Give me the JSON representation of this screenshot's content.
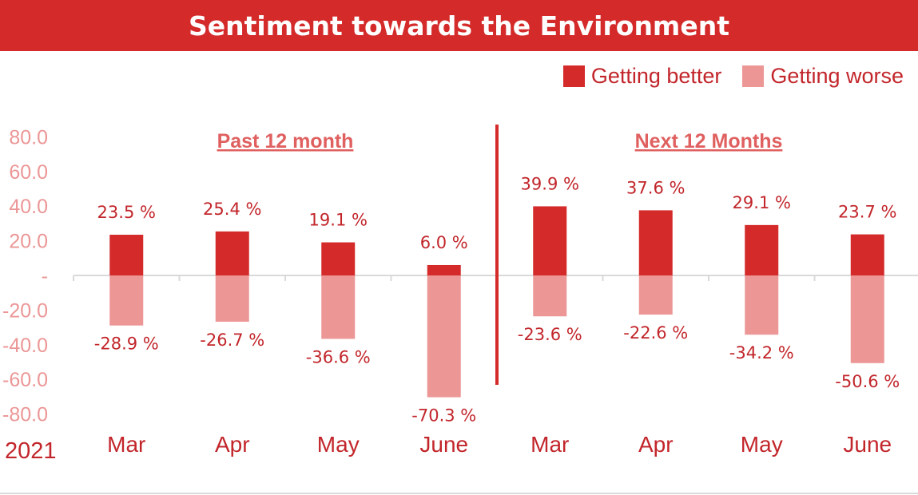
{
  "title": "Sentiment towards the Environment",
  "colors": {
    "better": "#d42a2a",
    "worse": "#ec9696",
    "axis_text": "#ec9696",
    "dark_text": "#c2262b"
  },
  "legend": [
    {
      "label": "Getting better",
      "color": "#d42a2a"
    },
    {
      "label": "Getting worse",
      "color": "#ec9696"
    }
  ],
  "chart_data": {
    "type": "bar",
    "year_label": "2021",
    "categories": [
      "Mar",
      "Apr",
      "May",
      "June",
      "Mar",
      "Apr",
      "May",
      "June"
    ],
    "groups": [
      {
        "label": "Past 12 month",
        "categories": [
          0,
          1,
          2,
          3
        ]
      },
      {
        "label": "Next 12 Months",
        "categories": [
          4,
          5,
          6,
          7
        ]
      }
    ],
    "series": [
      {
        "name": "Getting better",
        "values": [
          23.5,
          25.4,
          19.1,
          6.0,
          39.9,
          37.6,
          29.1,
          23.7
        ],
        "labels": [
          "23.5 %",
          "25.4 %",
          "19.1 %",
          "6.0 %",
          "39.9 %",
          "37.6 %",
          "29.1 %",
          "23.7 %"
        ]
      },
      {
        "name": "Getting worse",
        "values": [
          -28.9,
          -26.7,
          -36.6,
          -70.3,
          -23.6,
          -22.6,
          -34.2,
          -50.6
        ],
        "labels": [
          "-28.9 %",
          "-26.7 %",
          "-36.6 %",
          "-70.3 %",
          "-23.6 %",
          "-22.6 %",
          "-34.2 %",
          "-50.6 %"
        ]
      }
    ],
    "yticks": [
      80,
      60,
      40,
      20,
      0,
      -20,
      -40,
      -60,
      -80
    ],
    "ytick_labels": [
      "80.0",
      "60.0",
      "40.0",
      "20.0",
      "-",
      "-20.0",
      "-40.0",
      "-60.0",
      "-80.0"
    ],
    "ylim": [
      -80,
      80
    ],
    "grid": false,
    "legend_position": "top-right"
  }
}
